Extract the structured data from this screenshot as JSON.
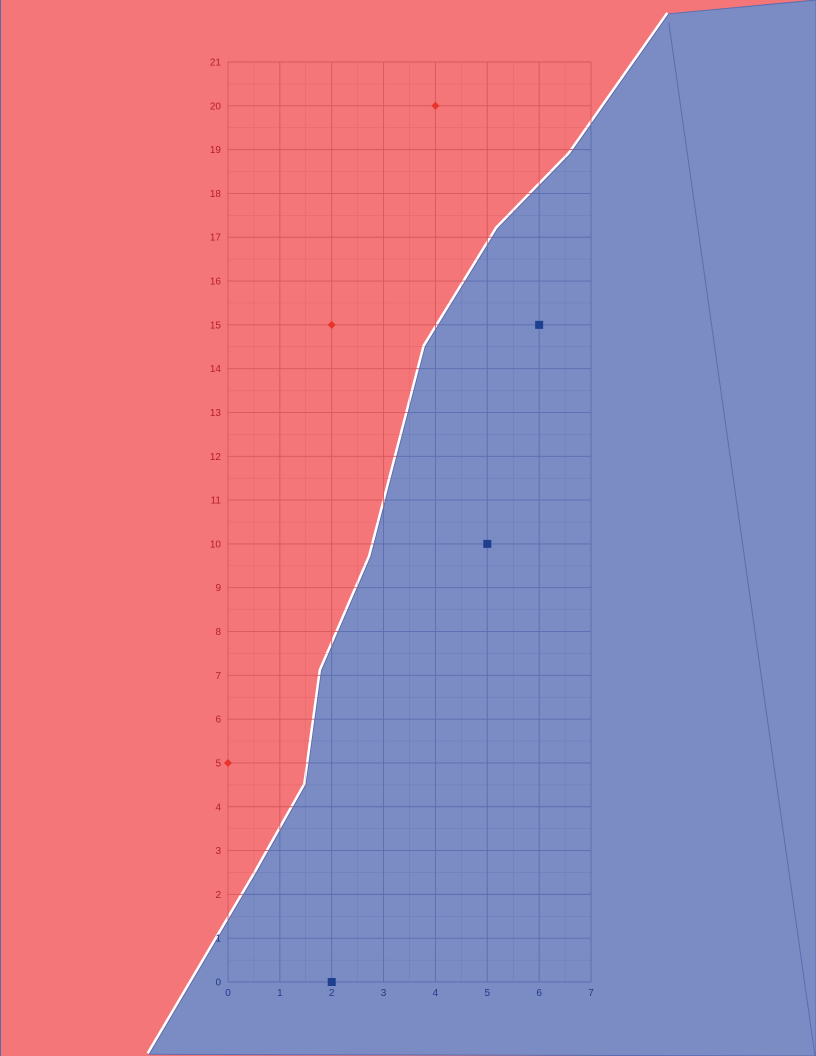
{
  "chart_data": {
    "type": "scatter",
    "title": "",
    "xlabel": "",
    "ylabel": "",
    "xlim": [
      0,
      7
    ],
    "ylim": [
      0,
      21
    ],
    "x_ticks": [
      "0",
      "1",
      "2",
      "3",
      "4",
      "5",
      "6",
      "7"
    ],
    "y_ticks": [
      "0",
      "1",
      "2",
      "3",
      "4",
      "5",
      "6",
      "7",
      "8",
      "9",
      "10",
      "11",
      "12",
      "13",
      "14",
      "15",
      "16",
      "17",
      "18",
      "19",
      "20",
      "21"
    ],
    "grid": true,
    "series": [
      {
        "marker": "diamond",
        "color": "#e8352b",
        "points": [
          [
            0,
            5
          ],
          [
            2,
            15
          ],
          [
            4,
            20
          ]
        ]
      },
      {
        "marker": "square",
        "color": "#1f3f8f",
        "points": [
          [
            2,
            0
          ],
          [
            5,
            10
          ],
          [
            6,
            15
          ]
        ]
      }
    ],
    "regions": [
      {
        "color": "#f47679"
      },
      {
        "color": "#7a8cc3",
        "boundary": [
          [
            -1.52,
            -1.65
          ],
          [
            0.55,
            2.5
          ],
          [
            1.5,
            4.5
          ],
          [
            1.8,
            7.1
          ],
          [
            2.75,
            9.7
          ],
          [
            3.8,
            14.5
          ],
          [
            5.2,
            17.2
          ],
          [
            6.6,
            18.9
          ],
          [
            8.5,
            22.1
          ]
        ]
      }
    ],
    "grid_color_light": "#d4585d",
    "grid_color_dark": "#5a6db0",
    "tick_color_light": "#b51f2a",
    "tick_color_dark": "#1f3a8a"
  }
}
